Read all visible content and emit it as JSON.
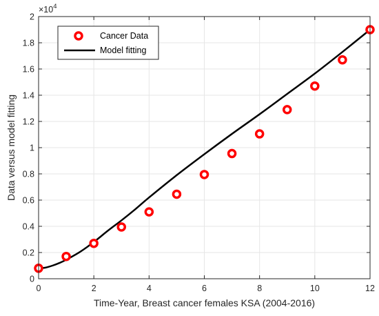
{
  "chart_data": {
    "type": "line",
    "xlabel": "Time-Year, Breast cancer females KSA (2004-2016)",
    "ylabel": "Data versus model fitting",
    "xlim": [
      0,
      12
    ],
    "ylim": [
      0,
      20000
    ],
    "x_ticks": [
      0,
      2,
      4,
      6,
      8,
      10,
      12
    ],
    "y_ticks": [
      0,
      2000,
      4000,
      6000,
      8000,
      10000,
      12000,
      14000,
      16000,
      18000,
      20000
    ],
    "y_tick_labels": [
      "0",
      "0.2",
      "0.4",
      "0.6",
      "0.8",
      "1",
      "1.2",
      "1.4",
      "1.6",
      "1.8",
      "2"
    ],
    "y_exponent_base": "×10",
    "y_exponent_power": "4",
    "grid": true,
    "legend_position": "top-left",
    "series": [
      {
        "name": "Cancer Data",
        "style": "markers",
        "color": "#ff0000",
        "x": [
          0,
          1,
          2,
          3,
          4,
          5,
          6,
          7,
          8,
          9,
          10,
          11,
          12
        ],
        "y": [
          800,
          1700,
          2700,
          3950,
          5100,
          6450,
          7950,
          9550,
          11050,
          12900,
          14700,
          16700,
          19000
        ]
      },
      {
        "name": "Model fitting",
        "style": "line",
        "color": "#000000",
        "x": [
          0,
          0.25,
          0.5,
          0.75,
          1,
          1.5,
          2,
          2.5,
          3,
          3.5,
          4,
          5,
          6,
          7,
          8,
          9,
          10,
          11,
          12
        ],
        "y": [
          800,
          850,
          1000,
          1200,
          1450,
          2050,
          2800,
          3650,
          4450,
          5300,
          6200,
          7900,
          9500,
          11050,
          12550,
          14100,
          15650,
          17300,
          19000
        ]
      }
    ]
  }
}
